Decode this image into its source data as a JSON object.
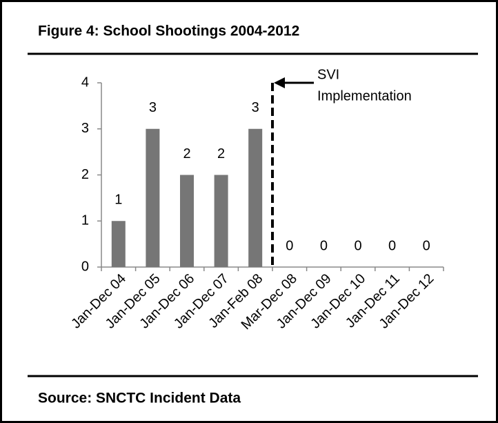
{
  "chart_data": {
    "type": "bar",
    "title": "Figure 4: School Shootings 2004-2012",
    "categories": [
      "Jan-Dec 04",
      "Jan-Dec 05",
      "Jan-Dec 06",
      "Jan-Dec 07",
      "Jan-Feb 08",
      "Mar-Dec 08",
      "Jan-Dec 09",
      "Jan-Dec 10",
      "Jan-Dec 11",
      "Jan-Dec 12"
    ],
    "values": [
      1,
      3,
      2,
      2,
      3,
      0,
      0,
      0,
      0,
      0
    ],
    "color": "#767676",
    "ylim": [
      0,
      4
    ],
    "yticks": [
      0,
      1,
      2,
      3,
      4
    ],
    "grid": false,
    "annotation": [
      "SVI",
      "Implementation"
    ]
  },
  "source": "Source: SNCTC Incident Data"
}
